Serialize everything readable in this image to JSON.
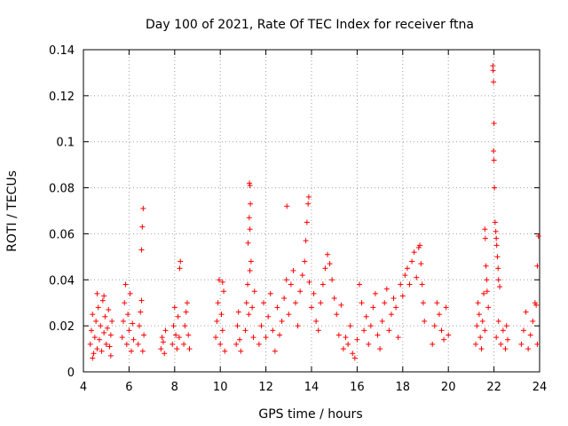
{
  "chart_data": {
    "type": "scatter",
    "title": "Day 100 of 2021, Rate Of TEC Index for receiver ftna",
    "xlabel": "GPS time / hours",
    "ylabel": "ROTI / TECUs",
    "xlim": [
      4,
      24
    ],
    "ylim": [
      0,
      0.14
    ],
    "x_ticks": [
      4,
      6,
      8,
      10,
      12,
      14,
      16,
      18,
      20,
      22,
      24
    ],
    "y_ticks": [
      0,
      0.02,
      0.04,
      0.06,
      0.08,
      0.1,
      0.12,
      0.14
    ],
    "x_tick_labels": [
      "4",
      "6",
      "8",
      "10",
      "12",
      "14",
      "16",
      "18",
      "20",
      "22",
      "24"
    ],
    "y_tick_labels": [
      "0",
      "0.02",
      "0.04",
      "0.06",
      "0.08",
      "0.1",
      "0.12",
      "0.14"
    ],
    "grid": true,
    "marker": "plus",
    "color": "#ff0000",
    "series": [
      {
        "name": "ROTI",
        "points": [
          [
            4.3,
            0.012
          ],
          [
            4.35,
            0.018
          ],
          [
            4.4,
            0.025
          ],
          [
            4.45,
            0.008
          ],
          [
            4.5,
            0.015
          ],
          [
            4.55,
            0.022
          ],
          [
            4.6,
            0.01
          ],
          [
            4.65,
            0.028
          ],
          [
            4.7,
            0.014
          ],
          [
            4.75,
            0.02
          ],
          [
            4.8,
            0.009
          ],
          [
            4.85,
            0.031
          ],
          [
            4.9,
            0.017
          ],
          [
            4.95,
            0.024
          ],
          [
            5.0,
            0.012
          ],
          [
            5.05,
            0.019
          ],
          [
            5.1,
            0.027
          ],
          [
            5.15,
            0.011
          ],
          [
            5.2,
            0.016
          ],
          [
            5.25,
            0.022
          ],
          [
            4.4,
            0.006
          ],
          [
            4.6,
            0.034
          ],
          [
            4.9,
            0.033
          ],
          [
            5.2,
            0.007
          ],
          [
            5.7,
            0.015
          ],
          [
            5.75,
            0.022
          ],
          [
            5.8,
            0.03
          ],
          [
            5.85,
            0.038
          ],
          [
            5.9,
            0.012
          ],
          [
            5.95,
            0.025
          ],
          [
            6.0,
            0.018
          ],
          [
            6.05,
            0.034
          ],
          [
            6.1,
            0.009
          ],
          [
            6.15,
            0.021
          ],
          [
            6.2,
            0.014
          ],
          [
            6.4,
            0.012
          ],
          [
            6.45,
            0.02
          ],
          [
            6.5,
            0.026
          ],
          [
            6.55,
            0.031
          ],
          [
            6.6,
            0.009
          ],
          [
            6.62,
            0.071
          ],
          [
            6.58,
            0.063
          ],
          [
            6.55,
            0.053
          ],
          [
            6.65,
            0.016
          ],
          [
            7.4,
            0.01
          ],
          [
            7.45,
            0.015
          ],
          [
            7.5,
            0.013
          ],
          [
            7.55,
            0.008
          ],
          [
            7.6,
            0.018
          ],
          [
            7.9,
            0.012
          ],
          [
            7.95,
            0.02
          ],
          [
            8.0,
            0.028
          ],
          [
            8.05,
            0.016
          ],
          [
            8.1,
            0.01
          ],
          [
            8.15,
            0.024
          ],
          [
            8.2,
            0.015
          ],
          [
            8.25,
            0.048
          ],
          [
            8.22,
            0.045
          ],
          [
            8.4,
            0.012
          ],
          [
            8.45,
            0.02
          ],
          [
            8.5,
            0.026
          ],
          [
            8.55,
            0.03
          ],
          [
            8.6,
            0.016
          ],
          [
            8.65,
            0.01
          ],
          [
            9.8,
            0.015
          ],
          [
            9.85,
            0.022
          ],
          [
            9.9,
            0.03
          ],
          [
            9.95,
            0.04
          ],
          [
            10.0,
            0.012
          ],
          [
            10.05,
            0.025
          ],
          [
            10.1,
            0.018
          ],
          [
            10.15,
            0.035
          ],
          [
            10.2,
            0.009
          ],
          [
            10.1,
            0.039
          ],
          [
            10.7,
            0.012
          ],
          [
            10.75,
            0.02
          ],
          [
            10.8,
            0.026
          ],
          [
            10.85,
            0.014
          ],
          [
            10.9,
            0.009
          ],
          [
            11.1,
            0.018
          ],
          [
            11.15,
            0.03
          ],
          [
            11.2,
            0.038
          ],
          [
            11.25,
            0.025
          ],
          [
            11.28,
            0.082
          ],
          [
            11.3,
            0.081
          ],
          [
            11.32,
            0.073
          ],
          [
            11.27,
            0.067
          ],
          [
            11.3,
            0.062
          ],
          [
            11.22,
            0.056
          ],
          [
            11.35,
            0.048
          ],
          [
            11.3,
            0.044
          ],
          [
            11.4,
            0.028
          ],
          [
            11.45,
            0.015
          ],
          [
            11.5,
            0.035
          ],
          [
            11.7,
            0.012
          ],
          [
            11.8,
            0.02
          ],
          [
            11.9,
            0.03
          ],
          [
            12.0,
            0.015
          ],
          [
            12.1,
            0.024
          ],
          [
            12.2,
            0.034
          ],
          [
            12.3,
            0.018
          ],
          [
            12.4,
            0.009
          ],
          [
            12.5,
            0.028
          ],
          [
            12.6,
            0.016
          ],
          [
            12.7,
            0.022
          ],
          [
            12.8,
            0.032
          ],
          [
            12.9,
            0.04
          ],
          [
            12.92,
            0.072
          ],
          [
            13.0,
            0.025
          ],
          [
            13.1,
            0.038
          ],
          [
            13.2,
            0.044
          ],
          [
            13.3,
            0.03
          ],
          [
            13.4,
            0.02
          ],
          [
            13.5,
            0.035
          ],
          [
            13.6,
            0.042
          ],
          [
            13.7,
            0.048
          ],
          [
            13.75,
            0.057
          ],
          [
            13.8,
            0.065
          ],
          [
            13.85,
            0.073
          ],
          [
            13.88,
            0.076
          ],
          [
            13.9,
            0.039
          ],
          [
            14.0,
            0.028
          ],
          [
            14.1,
            0.034
          ],
          [
            14.2,
            0.022
          ],
          [
            14.3,
            0.018
          ],
          [
            14.4,
            0.03
          ],
          [
            14.5,
            0.038
          ],
          [
            14.6,
            0.045
          ],
          [
            14.7,
            0.051
          ],
          [
            14.8,
            0.047
          ],
          [
            14.9,
            0.04
          ],
          [
            15.0,
            0.032
          ],
          [
            15.1,
            0.025
          ],
          [
            15.2,
            0.016
          ],
          [
            15.3,
            0.029
          ],
          [
            15.4,
            0.01
          ],
          [
            15.5,
            0.015
          ],
          [
            15.6,
            0.012
          ],
          [
            15.7,
            0.02
          ],
          [
            15.8,
            0.008
          ],
          [
            15.9,
            0.006
          ],
          [
            16.0,
            0.014
          ],
          [
            16.1,
            0.038
          ],
          [
            16.2,
            0.03
          ],
          [
            16.3,
            0.018
          ],
          [
            16.4,
            0.024
          ],
          [
            16.5,
            0.012
          ],
          [
            16.6,
            0.02
          ],
          [
            16.7,
            0.028
          ],
          [
            16.8,
            0.034
          ],
          [
            16.9,
            0.016
          ],
          [
            17.0,
            0.01
          ],
          [
            17.1,
            0.022
          ],
          [
            17.2,
            0.03
          ],
          [
            17.3,
            0.036
          ],
          [
            17.4,
            0.018
          ],
          [
            17.5,
            0.025
          ],
          [
            17.6,
            0.032
          ],
          [
            17.7,
            0.028
          ],
          [
            17.8,
            0.015
          ],
          [
            17.9,
            0.038
          ],
          [
            18.0,
            0.033
          ],
          [
            18.1,
            0.042
          ],
          [
            18.2,
            0.045
          ],
          [
            18.3,
            0.038
          ],
          [
            18.4,
            0.048
          ],
          [
            18.5,
            0.052
          ],
          [
            18.6,
            0.041
          ],
          [
            18.7,
            0.054
          ],
          [
            18.75,
            0.055
          ],
          [
            18.8,
            0.047
          ],
          [
            18.85,
            0.038
          ],
          [
            18.9,
            0.03
          ],
          [
            18.95,
            0.022
          ],
          [
            19.3,
            0.012
          ],
          [
            19.4,
            0.02
          ],
          [
            19.5,
            0.03
          ],
          [
            19.6,
            0.025
          ],
          [
            19.7,
            0.018
          ],
          [
            19.8,
            0.014
          ],
          [
            19.9,
            0.028
          ],
          [
            20.0,
            0.016
          ],
          [
            21.2,
            0.012
          ],
          [
            21.25,
            0.02
          ],
          [
            21.3,
            0.03
          ],
          [
            21.35,
            0.025
          ],
          [
            21.4,
            0.015
          ],
          [
            21.45,
            0.01
          ],
          [
            21.5,
            0.022
          ],
          [
            21.55,
            0.034
          ],
          [
            21.6,
            0.018
          ],
          [
            21.6,
            0.062
          ],
          [
            21.62,
            0.058
          ],
          [
            21.65,
            0.046
          ],
          [
            21.68,
            0.04
          ],
          [
            21.7,
            0.035
          ],
          [
            21.75,
            0.028
          ],
          [
            21.95,
            0.133
          ],
          [
            21.96,
            0.131
          ],
          [
            21.98,
            0.126
          ],
          [
            22.0,
            0.108
          ],
          [
            21.98,
            0.096
          ],
          [
            22.0,
            0.092
          ],
          [
            22.02,
            0.08
          ],
          [
            22.05,
            0.065
          ],
          [
            22.08,
            0.061
          ],
          [
            22.1,
            0.058
          ],
          [
            22.12,
            0.055
          ],
          [
            22.15,
            0.05
          ],
          [
            22.18,
            0.045
          ],
          [
            22.2,
            0.04
          ],
          [
            22.25,
            0.037
          ],
          [
            22.1,
            0.015
          ],
          [
            22.2,
            0.022
          ],
          [
            22.3,
            0.012
          ],
          [
            22.4,
            0.018
          ],
          [
            22.5,
            0.01
          ],
          [
            22.55,
            0.02
          ],
          [
            22.6,
            0.014
          ],
          [
            23.2,
            0.012
          ],
          [
            23.3,
            0.018
          ],
          [
            23.4,
            0.026
          ],
          [
            23.5,
            0.01
          ],
          [
            23.6,
            0.016
          ],
          [
            23.7,
            0.022
          ],
          [
            23.8,
            0.03
          ],
          [
            23.85,
            0.029
          ],
          [
            23.9,
            0.046
          ],
          [
            23.95,
            0.059
          ],
          [
            23.9,
            0.012
          ]
        ]
      }
    ]
  }
}
